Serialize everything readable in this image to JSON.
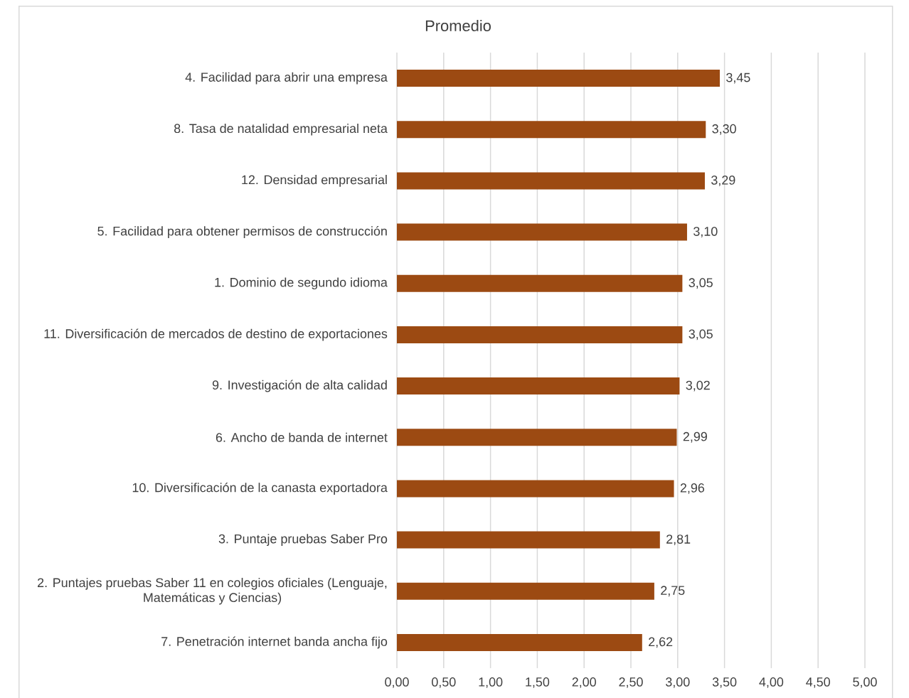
{
  "chart_data": {
    "type": "bar",
    "orientation": "horizontal",
    "title": "Promedio",
    "categories": [
      "4. Facilidad para abrir una empresa",
      "8. Tasa de natalidad empresarial neta",
      "12. Densidad empresarial",
      "5. Facilidad para obtener permisos de construcción",
      "1. Dominio de segundo idioma",
      "11. Diversificación de mercados de destino de exportaciones",
      "9. Investigación de alta calidad",
      "6. Ancho de banda de internet",
      "10. Diversificación de la canasta exportadora",
      "3. Puntaje pruebas Saber Pro",
      "2. Puntajes pruebas Saber 11 en colegios oficiales (Lenguaje, Matemáticas y Ciencias)",
      "7. Penetración internet banda ancha fijo"
    ],
    "values": [
      3.45,
      3.3,
      3.29,
      3.1,
      3.05,
      3.05,
      3.02,
      2.99,
      2.96,
      2.81,
      2.75,
      2.62
    ],
    "value_labels": [
      "3,45",
      "3,30",
      "3,29",
      "3,10",
      "3,05",
      "3,05",
      "3,02",
      "2,99",
      "2,96",
      "2,81",
      "2,75",
      "2,62"
    ],
    "color": "#9c4a12",
    "xlim": [
      0,
      5
    ],
    "xticks": [
      {
        "value": 0,
        "label": "0,00"
      },
      {
        "value": 0.5,
        "label": "0,50"
      },
      {
        "value": 1,
        "label": "1,00"
      },
      {
        "value": 1.5,
        "label": "1,50"
      },
      {
        "value": 2,
        "label": "2,00"
      },
      {
        "value": 2.5,
        "label": "2,50"
      },
      {
        "value": 3,
        "label": "3,00"
      },
      {
        "value": 3.5,
        "label": "3,50"
      },
      {
        "value": 4,
        "label": "4,00"
      },
      {
        "value": 4.5,
        "label": "4,50"
      },
      {
        "value": 5,
        "label": "5,00"
      }
    ],
    "grid": "x"
  }
}
